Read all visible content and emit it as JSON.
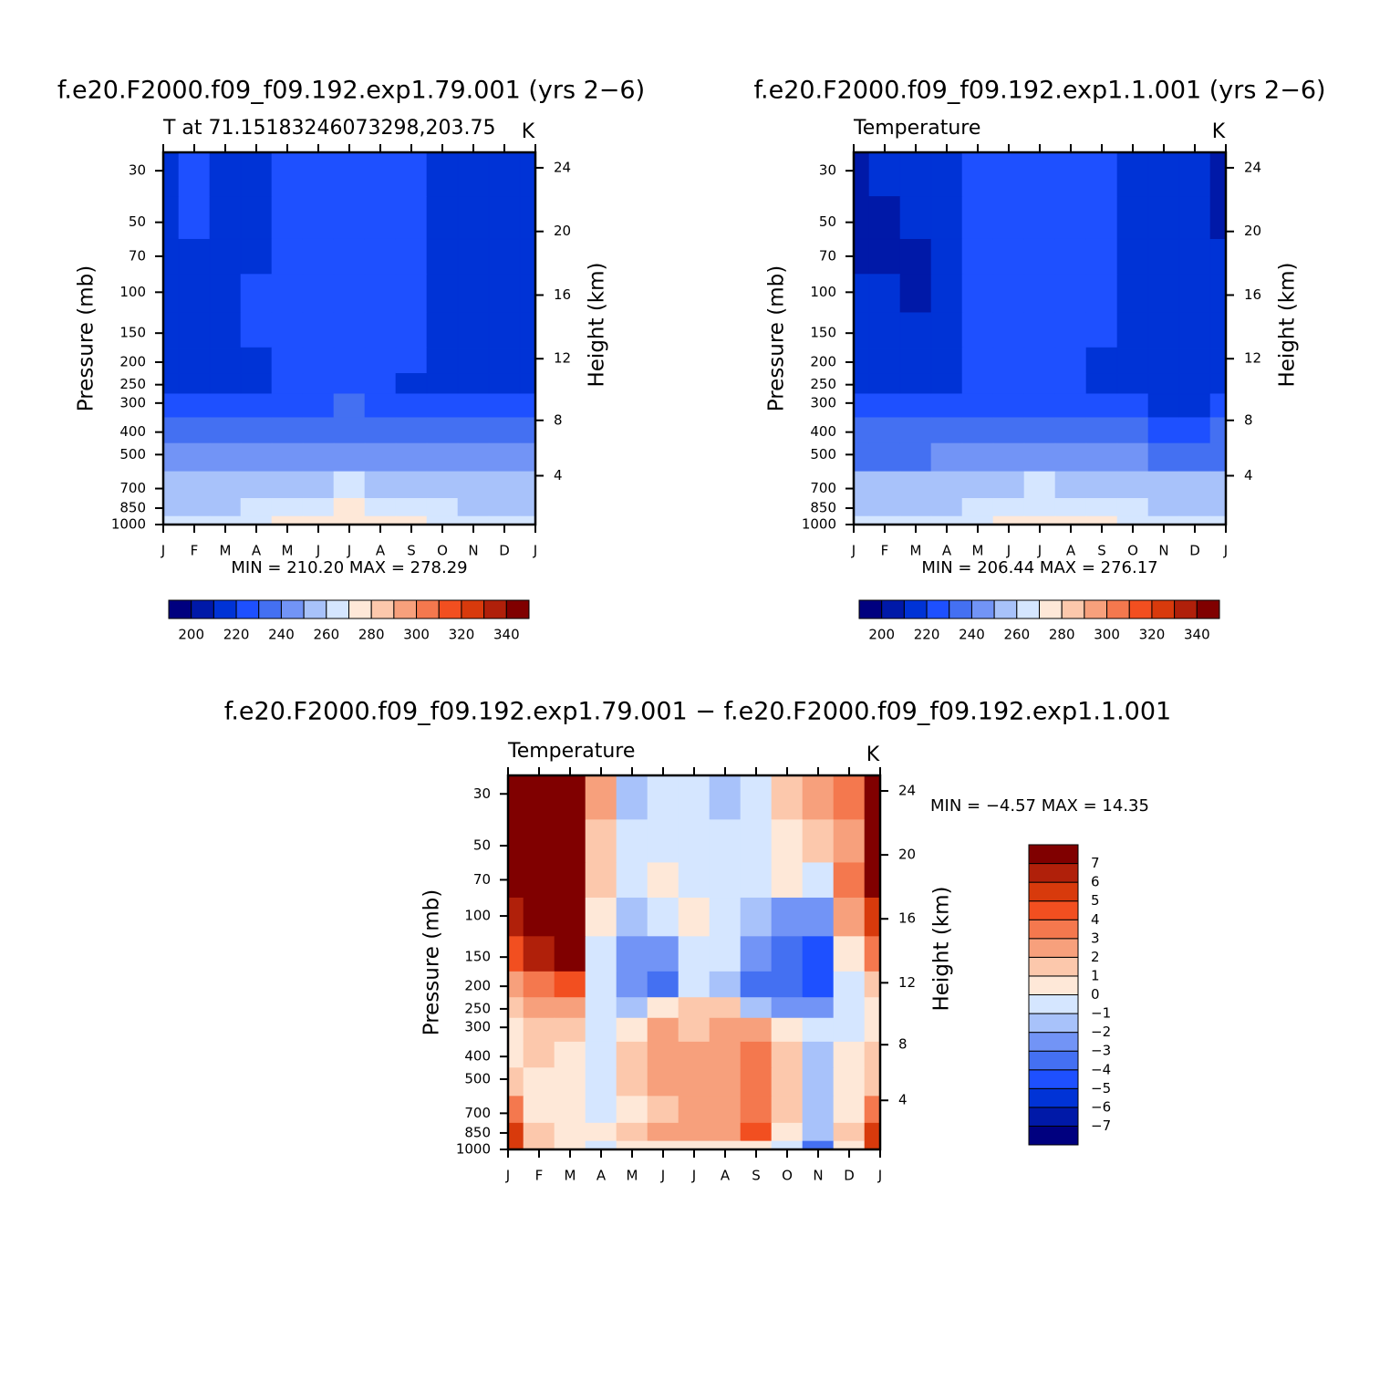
{
  "chart_data": [
    {
      "type": "contour",
      "title": "f.e20.F2000.f09_f09.192.exp1.79.001 (yrs 2−6)",
      "subtitle": "T at 71.15183246073298,203.75",
      "unit_label": "K",
      "ylabel": "Pressure (mb)",
      "y2label": "Height (km)",
      "min_max": "MIN = 210.20 MAX = 278.29",
      "categories": [
        "J",
        "F",
        "M",
        "A",
        "M",
        "J",
        "J",
        "A",
        "S",
        "O",
        "N",
        "D",
        "J"
      ],
      "y": [
        30,
        50,
        70,
        100,
        150,
        200,
        250,
        300,
        400,
        500,
        700,
        850,
        1000
      ],
      "ylim": [
        1000,
        25
      ],
      "log_y": true,
      "yticks": [
        30,
        50,
        70,
        100,
        150,
        200,
        250,
        300,
        400,
        500,
        700,
        850,
        1000
      ],
      "y2ticks": [
        4,
        8,
        12,
        16,
        20,
        24
      ],
      "z": [
        [
          217,
          222,
          217,
          219,
          224,
          226,
          227,
          226,
          221,
          217,
          216,
          216,
          217
        ],
        [
          216,
          221,
          216,
          219,
          224,
          226,
          226,
          224,
          221,
          216,
          215,
          215,
          216
        ],
        [
          215,
          218,
          215,
          219,
          223,
          225,
          225,
          224,
          222,
          217,
          215,
          215,
          215
        ],
        [
          214,
          215,
          214,
          220,
          223,
          224,
          224,
          224,
          222,
          218,
          215,
          214,
          214
        ],
        [
          214,
          215,
          214,
          220,
          223,
          224,
          224,
          224,
          222,
          217,
          215,
          214,
          214
        ],
        [
          213,
          213,
          213,
          218,
          222,
          224,
          225,
          224,
          220,
          216,
          214,
          213,
          213
        ],
        [
          215,
          215,
          216,
          218,
          221,
          223,
          224,
          223,
          219,
          216,
          215,
          215,
          215
        ],
        [
          221,
          221,
          222,
          223,
          225,
          228,
          230,
          228,
          226,
          223,
          221,
          221,
          221
        ],
        [
          232,
          232,
          232,
          233,
          235,
          237,
          239,
          237,
          236,
          233,
          231,
          231,
          232
        ],
        [
          240,
          240,
          240,
          241,
          243,
          246,
          248,
          246,
          244,
          241,
          240,
          240,
          240
        ],
        [
          252,
          252,
          252,
          253,
          256,
          259,
          261,
          259,
          257,
          254,
          252,
          252,
          252
        ],
        [
          259,
          258,
          259,
          261,
          265,
          268,
          270,
          268,
          266,
          262,
          259,
          258,
          259
        ],
        [
          262,
          262,
          262,
          266,
          272,
          274,
          276,
          274,
          271,
          267,
          263,
          262,
          262
        ]
      ],
      "levels": [
        200,
        210,
        220,
        230,
        240,
        250,
        260,
        270,
        280,
        290,
        300,
        310,
        320,
        330,
        340
      ],
      "colors": [
        "#00007f",
        "#0019a8",
        "#0033d6",
        "#1e50ff",
        "#4470f2",
        "#7294f6",
        "#a8c2fa",
        "#d5e6ff",
        "#fee8d8",
        "#fcc8ac",
        "#f7a07c",
        "#f4784e",
        "#f24f20",
        "#d83a0c",
        "#b0200a",
        "#800000"
      ],
      "colorbar_ticks": [
        200,
        220,
        240,
        260,
        280,
        300,
        320,
        340
      ]
    },
    {
      "type": "contour",
      "title": "f.e20.F2000.f09_f09.192.exp1.1.001 (yrs 2−6)",
      "subtitle": "Temperature",
      "unit_label": "K",
      "ylabel": "Pressure (mb)",
      "y2label": "Height (km)",
      "min_max": "MIN = 206.44 MAX = 276.17",
      "categories": [
        "J",
        "F",
        "M",
        "A",
        "M",
        "J",
        "J",
        "A",
        "S",
        "O",
        "N",
        "D",
        "J"
      ],
      "y": [
        30,
        50,
        70,
        100,
        150,
        200,
        250,
        300,
        400,
        500,
        700,
        850,
        1000
      ],
      "ylim": [
        1000,
        25
      ],
      "log_y": true,
      "yticks": [
        30,
        50,
        70,
        100,
        150,
        200,
        250,
        300,
        400,
        500,
        700,
        850,
        1000
      ],
      "y2ticks": [
        4,
        8,
        12,
        16,
        20,
        24
      ],
      "z": [
        [
          208,
          210,
          213,
          219,
          223,
          224,
          224,
          224,
          222,
          219,
          214,
          212,
          207
        ],
        [
          208,
          209,
          211,
          219,
          223,
          224,
          224,
          223,
          221,
          218,
          216,
          213,
          209
        ],
        [
          208,
          209,
          209,
          218,
          222,
          224,
          224,
          223,
          221,
          219,
          217,
          215,
          210
        ],
        [
          212,
          210,
          209,
          217,
          222,
          224,
          224,
          224,
          222,
          218,
          217,
          216,
          215
        ],
        [
          215,
          215,
          215,
          218,
          222,
          224,
          224,
          224,
          222,
          218,
          216,
          215,
          215
        ],
        [
          214,
          214,
          214,
          217,
          221,
          224,
          225,
          224,
          219,
          216,
          215,
          215,
          215
        ],
        [
          216,
          216,
          216,
          218,
          221,
          223,
          224,
          223,
          219,
          216,
          215,
          215,
          216
        ],
        [
          220,
          220,
          221,
          222,
          224,
          227,
          229,
          227,
          224,
          221,
          219,
          219,
          220
        ],
        [
          230,
          230,
          231,
          232,
          234,
          236,
          238,
          236,
          234,
          232,
          229,
          229,
          230
        ],
        [
          239,
          239,
          239,
          240,
          242,
          245,
          247,
          245,
          243,
          240,
          238,
          238,
          239
        ],
        [
          250,
          250,
          250,
          252,
          255,
          258,
          260,
          258,
          255,
          252,
          250,
          250,
          250
        ],
        [
          256,
          256,
          257,
          259,
          263,
          267,
          269,
          267,
          264,
          260,
          257,
          256,
          256
        ],
        [
          260,
          260,
          261,
          264,
          269,
          273,
          275,
          273,
          270,
          266,
          262,
          260,
          260
        ]
      ],
      "levels": [
        200,
        210,
        220,
        230,
        240,
        250,
        260,
        270,
        280,
        290,
        300,
        310,
        320,
        330,
        340
      ],
      "colors": [
        "#00007f",
        "#0019a8",
        "#0033d6",
        "#1e50ff",
        "#4470f2",
        "#7294f6",
        "#a8c2fa",
        "#d5e6ff",
        "#fee8d8",
        "#fcc8ac",
        "#f7a07c",
        "#f4784e",
        "#f24f20",
        "#d83a0c",
        "#b0200a",
        "#800000"
      ],
      "colorbar_ticks": [
        200,
        220,
        240,
        260,
        280,
        300,
        320,
        340
      ]
    },
    {
      "type": "contour",
      "title": "f.e20.F2000.f09_f09.192.exp1.79.001 − f.e20.F2000.f09_f09.192.exp1.1.001",
      "subtitle": "Temperature",
      "unit_label": "K",
      "ylabel": "Pressure (mb)",
      "y2label": "Height (km)",
      "min_max": "MIN =   −4.57 MAX =   14.35",
      "categories": [
        "J",
        "F",
        "M",
        "A",
        "M",
        "J",
        "J",
        "A",
        "S",
        "O",
        "N",
        "D",
        "J"
      ],
      "y": [
        30,
        50,
        70,
        100,
        150,
        200,
        250,
        300,
        400,
        500,
        700,
        850,
        1000
      ],
      "ylim": [
        1000,
        25
      ],
      "log_y": true,
      "yticks": [
        30,
        50,
        70,
        100,
        150,
        200,
        250,
        300,
        400,
        500,
        700,
        850,
        1000
      ],
      "y2ticks": [
        4,
        8,
        12,
        16,
        20,
        24
      ],
      "z": [
        [
          9,
          9,
          8,
          2,
          -2,
          -1,
          -0.5,
          -2,
          -0.5,
          1,
          2,
          3,
          9
        ],
        [
          9,
          9,
          7,
          1,
          -0.5,
          -0.5,
          -0.5,
          -0.5,
          -0.5,
          0.5,
          1.5,
          2,
          8
        ],
        [
          9,
          9,
          7,
          1,
          -0.5,
          0.5,
          -0.5,
          -0.5,
          -1,
          0.5,
          -1,
          3,
          7
        ],
        [
          6,
          8,
          7,
          0.5,
          -1.5,
          -0.5,
          0.5,
          -0.5,
          -2,
          -2.5,
          -3,
          2,
          5
        ],
        [
          4,
          6,
          7,
          -0.5,
          -3,
          -3,
          -0.5,
          -0.5,
          -3,
          -4,
          -4.5,
          0.5,
          3
        ],
        [
          2,
          3,
          4,
          -0.5,
          -3,
          -4,
          -1,
          -2,
          -4,
          -4,
          -4.5,
          -1,
          1
        ],
        [
          1,
          2,
          2,
          -1,
          -1.5,
          0.5,
          1,
          1,
          -2,
          -3,
          -3,
          -1,
          0.5
        ],
        [
          0.5,
          1,
          1.5,
          -0.5,
          0.5,
          2,
          1.5,
          2,
          2.5,
          0.5,
          -1,
          -0.5,
          0.5
        ],
        [
          0.5,
          1,
          0.5,
          -0.5,
          1,
          2,
          2,
          2.5,
          3.5,
          1,
          -1.5,
          0.5,
          1
        ],
        [
          1,
          0.5,
          0.5,
          -0.5,
          1,
          2,
          2,
          2.5,
          3.5,
          1,
          -2,
          0.5,
          1.5
        ],
        [
          3,
          0.5,
          0.5,
          -0.5,
          0.5,
          1.5,
          2,
          2.5,
          3,
          1,
          -2,
          0.5,
          3
        ],
        [
          5,
          1,
          0.5,
          0.5,
          1,
          2,
          2,
          2.5,
          4,
          0.5,
          -2,
          1,
          5
        ],
        [
          5,
          1,
          0.5,
          -0.5,
          0.5,
          0.5,
          0.5,
          0.5,
          0.5,
          -0.5,
          -4,
          0.5,
          5
        ]
      ],
      "levels": [
        -7,
        -6,
        -5,
        -4,
        -3,
        -2,
        -1,
        0,
        1,
        2,
        3,
        4,
        5,
        6,
        7
      ],
      "colors": [
        "#00007f",
        "#0019a8",
        "#0033d6",
        "#1e50ff",
        "#4470f2",
        "#7294f6",
        "#a8c2fa",
        "#d5e6ff",
        "#fee8d8",
        "#fcc8ac",
        "#f7a07c",
        "#f4784e",
        "#f24f20",
        "#d83a0c",
        "#b0200a",
        "#800000"
      ],
      "colorbar_ticks": [
        7,
        6,
        5,
        4,
        3,
        2,
        1,
        0,
        {
          "value": -1,
          "label": "−1"
        },
        {
          "value": -2,
          "label": "−2"
        },
        {
          "value": -3,
          "label": "−3"
        },
        {
          "value": -4,
          "label": "−4"
        },
        {
          "value": -5,
          "label": "−5"
        },
        {
          "value": -6,
          "label": "−6"
        },
        {
          "value": -7,
          "label": "−7"
        }
      ]
    }
  ]
}
